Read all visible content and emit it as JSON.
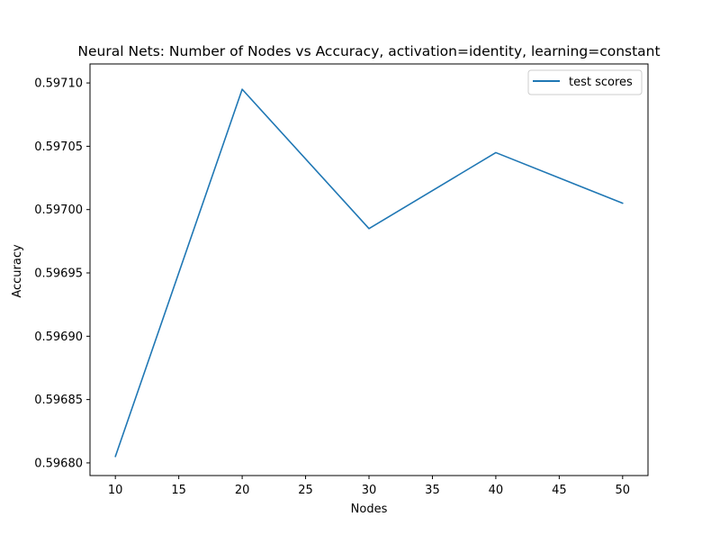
{
  "chart_data": {
    "type": "line",
    "title": "Neural Nets: Number of Nodes vs Accuracy, activation=identity, learning=constant",
    "xlabel": "Nodes",
    "ylabel": "Accuracy",
    "x": [
      10,
      20,
      30,
      40,
      50
    ],
    "series": [
      {
        "name": "test scores",
        "color": "#1f77b4",
        "values": [
          0.596805,
          0.597095,
          0.596985,
          0.597045,
          0.597005
        ]
      }
    ],
    "xlim": [
      8,
      52
    ],
    "ylim": [
      0.59679,
      0.597115
    ],
    "xticks": [
      10,
      15,
      20,
      25,
      30,
      35,
      40,
      45,
      50
    ],
    "xtick_labels": [
      "10",
      "15",
      "20",
      "25",
      "30",
      "35",
      "40",
      "45",
      "50"
    ],
    "yticks": [
      0.5968,
      0.59685,
      0.5969,
      0.59695,
      0.597,
      0.59705,
      0.5971
    ],
    "ytick_labels": [
      "0.59680",
      "0.59685",
      "0.59690",
      "0.59695",
      "0.59700",
      "0.59705",
      "0.59710"
    ],
    "grid": false,
    "legend_position": "top-right"
  }
}
